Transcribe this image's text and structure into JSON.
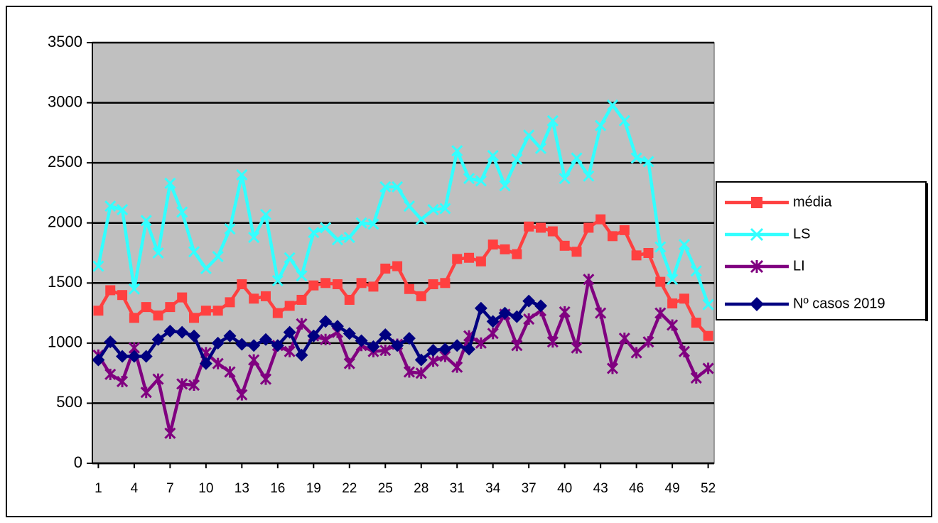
{
  "chart_data": {
    "type": "line",
    "x": [
      1,
      2,
      3,
      4,
      5,
      6,
      7,
      8,
      9,
      10,
      11,
      12,
      13,
      14,
      15,
      16,
      17,
      18,
      19,
      20,
      21,
      22,
      23,
      24,
      25,
      26,
      27,
      28,
      29,
      30,
      31,
      32,
      33,
      34,
      35,
      36,
      37,
      38,
      39,
      40,
      41,
      42,
      43,
      44,
      45,
      46,
      47,
      48,
      49,
      50,
      51,
      52
    ],
    "xlim": [
      0.5,
      52.5
    ],
    "xticks": [
      1,
      4,
      7,
      10,
      13,
      16,
      19,
      22,
      25,
      28,
      31,
      34,
      37,
      40,
      43,
      46,
      49,
      52
    ],
    "ylim": [
      0,
      3500
    ],
    "yticks": [
      0,
      500,
      1000,
      1500,
      2000,
      2500,
      3000,
      3500
    ],
    "grid": true,
    "legend": "right",
    "series": [
      {
        "name": "média",
        "color": "#ff4040",
        "marker": "square",
        "values": [
          1270,
          1440,
          1400,
          1210,
          1300,
          1230,
          1300,
          1380,
          1210,
          1270,
          1270,
          1340,
          1490,
          1370,
          1390,
          1250,
          1310,
          1360,
          1480,
          1500,
          1490,
          1360,
          1500,
          1470,
          1620,
          1640,
          1450,
          1390,
          1490,
          1500,
          1700,
          1710,
          1680,
          1820,
          1780,
          1740,
          1970,
          1960,
          1930,
          1810,
          1760,
          1960,
          2030,
          1890,
          1940,
          1730,
          1750,
          1510,
          1330,
          1370,
          1170,
          1060
        ]
      },
      {
        "name": "LS",
        "color": "#33ffff",
        "marker": "x",
        "values": [
          1640,
          2140,
          2110,
          1450,
          2020,
          1750,
          2330,
          2090,
          1760,
          1620,
          1720,
          1950,
          2400,
          1880,
          2070,
          1520,
          1710,
          1560,
          1920,
          1960,
          1860,
          1880,
          2000,
          1990,
          2300,
          2300,
          2140,
          2030,
          2110,
          2120,
          2600,
          2370,
          2350,
          2560,
          2310,
          2530,
          2730,
          2620,
          2850,
          2370,
          2540,
          2390,
          2810,
          2980,
          2850,
          2540,
          2510,
          1800,
          1530,
          1820,
          1600,
          1320
        ]
      },
      {
        "name": "LI",
        "color": "#800080",
        "marker": "asterisk",
        "values": [
          900,
          740,
          680,
          960,
          590,
          700,
          250,
          660,
          650,
          920,
          830,
          760,
          570,
          860,
          700,
          980,
          930,
          1160,
          1060,
          1030,
          1090,
          830,
          980,
          930,
          940,
          990,
          760,
          750,
          850,
          890,
          800,
          1060,
          1000,
          1080,
          1240,
          980,
          1200,
          1270,
          1010,
          1260,
          960,
          1530,
          1250,
          790,
          1040,
          920,
          1010,
          1250,
          1150,
          930,
          710,
          790
        ]
      },
      {
        "name": "Nº casos 2019",
        "color": "#000080",
        "marker": "diamond",
        "values": [
          860,
          1010,
          890,
          890,
          890,
          1030,
          1100,
          1090,
          1060,
          830,
          1000,
          1060,
          990,
          980,
          1030,
          980,
          1090,
          900,
          1060,
          1180,
          1140,
          1080,
          1020,
          970,
          1070,
          980,
          1040,
          860,
          940,
          950,
          980,
          950,
          1290,
          1180,
          1250,
          1220,
          1350,
          1310,
          null,
          null,
          null,
          null,
          null,
          null,
          null,
          null,
          null,
          null,
          null,
          null,
          null,
          null
        ]
      }
    ]
  }
}
